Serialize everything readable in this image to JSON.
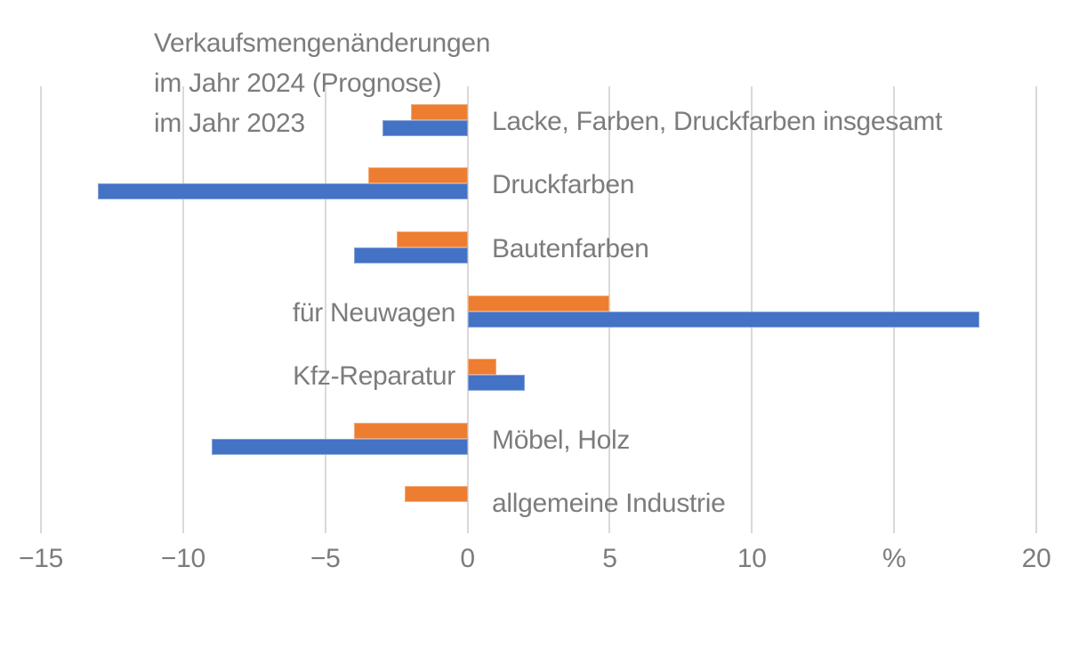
{
  "title": {
    "line1": "Verkaufsmengenänderungen",
    "line2": "im Jahr 2024 (Prognose)",
    "line3": "im Jahr 2023"
  },
  "chart_data": {
    "type": "bar",
    "orientation": "horizontal",
    "title": "Verkaufsmengenänderungen im Jahr 2024 (Prognose) / im Jahr 2023",
    "unit": "%",
    "xlim": [
      -15,
      20
    ],
    "grid": true,
    "legend_position": "top-left text lines (no color swatches)",
    "x_ticks": [
      {
        "value": -15,
        "label": "−15"
      },
      {
        "value": -10,
        "label": "−10"
      },
      {
        "value": -5,
        "label": "−5"
      },
      {
        "value": 0,
        "label": "0"
      },
      {
        "value": 5,
        "label": "5"
      },
      {
        "value": 10,
        "label": "10"
      },
      {
        "value": 15,
        "label": "%"
      },
      {
        "value": 20,
        "label": "20"
      }
    ],
    "categories": [
      "Lacke, Farben, Druckfarben insgesamt",
      "Druckfarben",
      "Bautenfarben",
      "für Neuwagen",
      "Kfz-Reparatur",
      "Möbel, Holz",
      "allgemeine Industrie"
    ],
    "label_side": [
      "right",
      "right",
      "right",
      "left",
      "left",
      "right",
      "right"
    ],
    "series": [
      {
        "name": "im Jahr 2024 (Prognose)",
        "color": "#ED7D31",
        "values": [
          -2,
          -3.5,
          -2.5,
          5,
          1,
          -4,
          -2.2
        ]
      },
      {
        "name": "im Jahr 2023",
        "color": "#4472C4",
        "values": [
          -3,
          -13,
          -4,
          18,
          2,
          -9,
          0
        ]
      }
    ],
    "text_color": "#7C7C7C",
    "gridline_color": "#D9D9D9"
  }
}
